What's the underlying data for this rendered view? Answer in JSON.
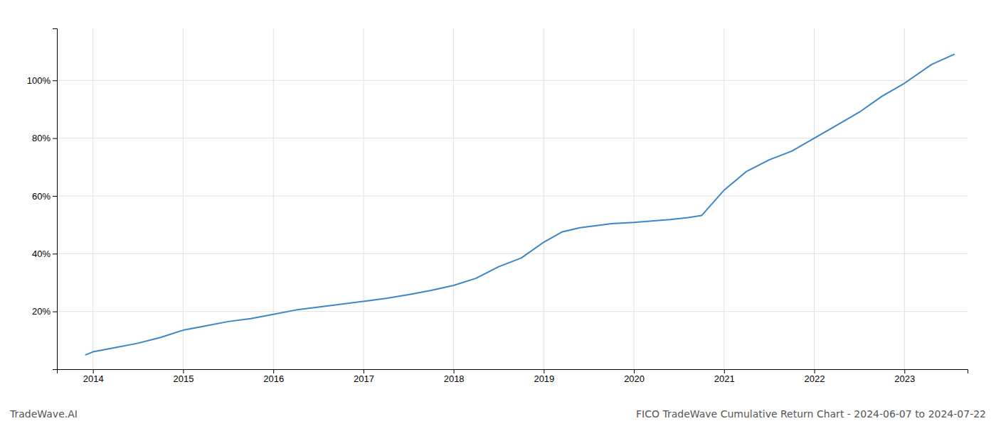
{
  "chart_data": {
    "type": "line",
    "title": "FICO TradeWave Cumulative Return Chart - 2024-06-07 to 2024-07-22",
    "annotations": [
      {
        "text": "TradeWave.AI"
      }
    ],
    "color": "#3a86c8",
    "x": [
      2013.92,
      2014.0,
      2014.25,
      2014.5,
      2014.75,
      2015.0,
      2015.25,
      2015.5,
      2015.75,
      2016.0,
      2016.25,
      2016.5,
      2016.75,
      2017.0,
      2017.25,
      2017.5,
      2017.75,
      2018.0,
      2018.25,
      2018.5,
      2018.75,
      2019.0,
      2019.2,
      2019.4,
      2019.6,
      2019.75,
      2020.0,
      2020.2,
      2020.4,
      2020.6,
      2020.75,
      2021.0,
      2021.25,
      2021.5,
      2021.75,
      2022.0,
      2022.25,
      2022.5,
      2022.75,
      2023.0,
      2023.3,
      2023.55
    ],
    "values": [
      0.05,
      0.06,
      0.075,
      0.09,
      0.11,
      0.135,
      0.15,
      0.165,
      0.175,
      0.19,
      0.205,
      0.215,
      0.225,
      0.235,
      0.245,
      0.258,
      0.273,
      0.29,
      0.315,
      0.355,
      0.385,
      0.44,
      0.475,
      0.49,
      0.498,
      0.504,
      0.508,
      0.513,
      0.518,
      0.525,
      0.532,
      0.62,
      0.685,
      0.725,
      0.755,
      0.8,
      0.845,
      0.89,
      0.945,
      0.99,
      1.055,
      1.09
    ],
    "xlim": [
      2013.6,
      2023.7
    ],
    "ylim": [
      0.0,
      1.18
    ],
    "xticks": [
      2014,
      2015,
      2016,
      2017,
      2018,
      2019,
      2020,
      2021,
      2022,
      2023
    ],
    "yticks": [
      {
        "value": 0.2,
        "label": "20%"
      },
      {
        "value": 0.4,
        "label": "40%"
      },
      {
        "value": 0.6,
        "label": "60%"
      },
      {
        "value": 0.8,
        "label": "80%"
      },
      {
        "value": 1.0,
        "label": "100%"
      }
    ],
    "grid": true
  }
}
